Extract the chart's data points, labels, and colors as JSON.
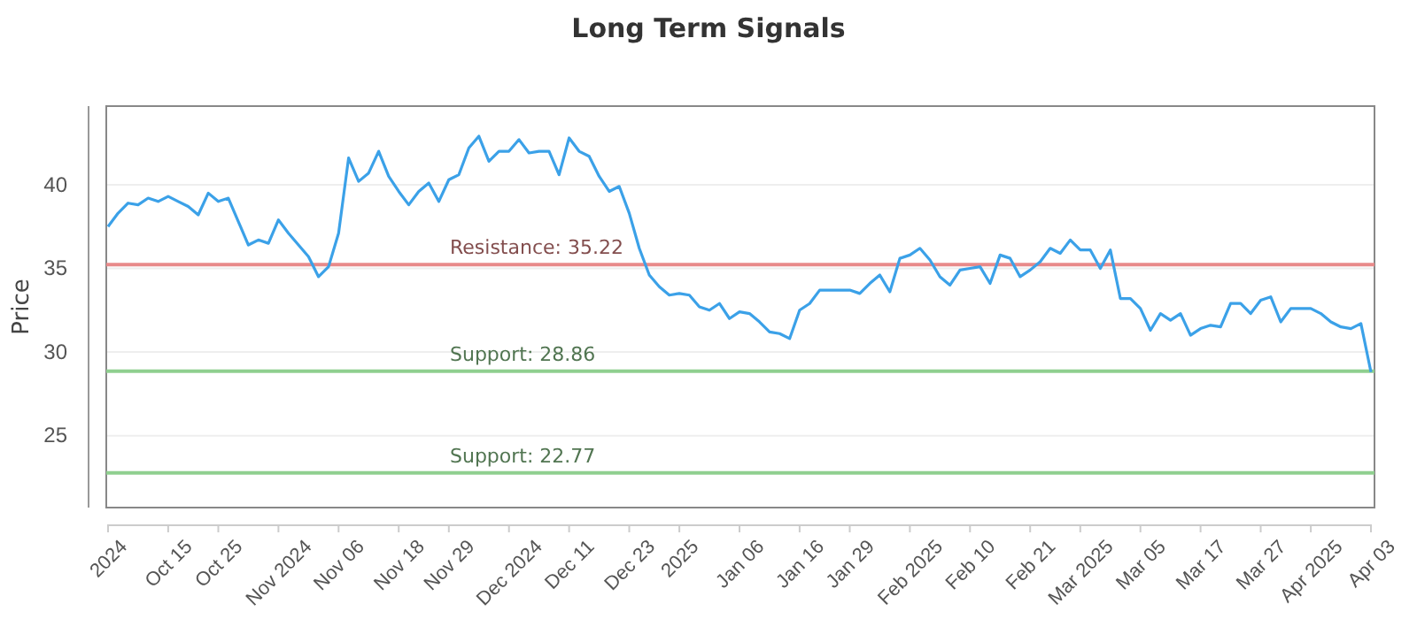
{
  "chart_data": {
    "type": "line",
    "title": "Long Term Signals",
    "ylabel": "Price",
    "categories": [
      "2024",
      null,
      null,
      null,
      null,
      null,
      "Oct 15",
      null,
      null,
      null,
      null,
      "Oct 25",
      null,
      null,
      null,
      null,
      null,
      "Nov 2024",
      null,
      null,
      null,
      null,
      null,
      "Nov 06",
      null,
      null,
      null,
      null,
      null,
      "Nov 18",
      null,
      null,
      null,
      null,
      "Nov 29",
      null,
      null,
      null,
      null,
      null,
      "Dec 2024",
      null,
      null,
      null,
      null,
      null,
      "Dec 11",
      null,
      null,
      null,
      null,
      null,
      "Dec 23",
      null,
      null,
      null,
      null,
      "2025",
      null,
      null,
      null,
      null,
      null,
      "Jan 06",
      null,
      null,
      null,
      null,
      null,
      "Jan 16",
      null,
      null,
      null,
      null,
      "Jan 29",
      null,
      null,
      null,
      null,
      null,
      "Feb 2025",
      null,
      null,
      null,
      null,
      null,
      "Feb 10",
      null,
      null,
      null,
      null,
      null,
      "Feb 21",
      null,
      null,
      null,
      null,
      "Mar 2025",
      null,
      null,
      null,
      null,
      null,
      "Mar 05",
      null,
      null,
      null,
      null,
      null,
      "Mar 17",
      null,
      null,
      null,
      null,
      null,
      "Mar 27",
      null,
      null,
      null,
      null,
      "Apr 2025",
      null,
      null,
      null,
      null,
      null,
      "Apr 03"
    ],
    "series": [
      {
        "color": "#3ba1e8",
        "values": [
          37.5,
          38.3,
          38.9,
          38.8,
          39.2,
          39.0,
          39.3,
          39.0,
          38.7,
          38.2,
          39.5,
          39.0,
          39.2,
          37.8,
          36.4,
          36.7,
          36.5,
          37.9,
          37.1,
          36.4,
          35.7,
          34.5,
          35.1,
          37.1,
          41.6,
          40.2,
          40.7,
          42.0,
          40.5,
          39.6,
          38.8,
          39.6,
          40.1,
          39.0,
          40.3,
          40.6,
          42.2,
          42.9,
          41.4,
          42.0,
          42.0,
          42.7,
          41.9,
          42.0,
          42.0,
          40.6,
          42.8,
          42.0,
          41.7,
          40.5,
          39.6,
          39.9,
          38.3,
          36.2,
          34.6,
          33.9,
          33.4,
          33.5,
          33.4,
          32.7,
          32.5,
          32.9,
          32.0,
          32.4,
          32.3,
          31.8,
          31.2,
          31.1,
          30.8,
          32.5,
          32.9,
          33.7,
          33.7,
          33.7,
          33.7,
          33.5,
          34.1,
          34.6,
          33.6,
          35.6,
          35.8,
          36.2,
          35.5,
          34.5,
          34.0,
          34.9,
          35.0,
          35.1,
          34.1,
          35.8,
          35.6,
          34.5,
          34.9,
          35.4,
          36.2,
          35.9,
          36.7,
          36.1,
          36.1,
          35.0,
          36.1,
          33.2,
          33.2,
          32.6,
          31.3,
          32.3,
          31.9,
          32.3,
          31.0,
          31.4,
          31.6,
          31.5,
          32.9,
          32.9,
          32.3,
          33.1,
          33.3,
          31.8,
          32.6,
          32.6,
          32.6,
          32.3,
          31.8,
          31.5,
          31.4,
          31.7,
          28.8
        ]
      }
    ],
    "ylim": [
      20.7,
      44.7
    ],
    "yticks": [
      25,
      30,
      35,
      40
    ],
    "grid": "y",
    "marker": "none",
    "line_style": "solid",
    "ref_lines": [
      {
        "axis": "y",
        "value": 35.22,
        "label": "Resistance: 35.22",
        "color": "#e88a8a"
      },
      {
        "axis": "y",
        "value": 28.86,
        "label": "Support: 28.86",
        "color": "#8fcf8f"
      },
      {
        "axis": "y",
        "value": 22.77,
        "label": "Support: 22.77",
        "color": "#8fcf8f"
      }
    ]
  }
}
